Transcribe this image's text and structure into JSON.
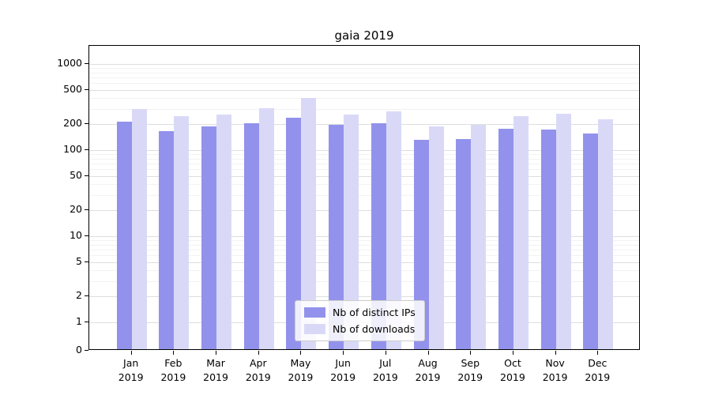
{
  "title": "gaia 2019",
  "chart_data": {
    "type": "bar",
    "title": "gaia 2019",
    "categories": [
      "Jan 2019",
      "Feb 2019",
      "Mar 2019",
      "Apr 2019",
      "May 2019",
      "Jun 2019",
      "Jul 2019",
      "Aug 2019",
      "Sep 2019",
      "Oct 2019",
      "Nov 2019",
      "Dec 2019"
    ],
    "series": [
      {
        "name": "Nb of distinct IPs",
        "color": "#9292ec",
        "values": [
          205,
          160,
          180,
          195,
          230,
          190,
          195,
          125,
          130,
          170,
          165,
          150
        ]
      },
      {
        "name": "Nb of downloads",
        "color": "#d9d9f7",
        "values": [
          290,
          240,
          250,
          295,
          385,
          250,
          270,
          180,
          190,
          240,
          255,
          220
        ]
      }
    ],
    "xlabel": "",
    "ylabel": "",
    "yscale": "symlog",
    "yticks": [
      0,
      1,
      2,
      5,
      10,
      20,
      50,
      100,
      200,
      500,
      1000
    ],
    "ylim": [
      0,
      1400
    ],
    "grid": true,
    "legend_position": "lower center"
  },
  "colors": {
    "background": "#ffffff",
    "grid_major": "#dedede",
    "grid_minor": "#f2f2f2",
    "axis": "#000000",
    "legend_border": "#cccccc"
  }
}
